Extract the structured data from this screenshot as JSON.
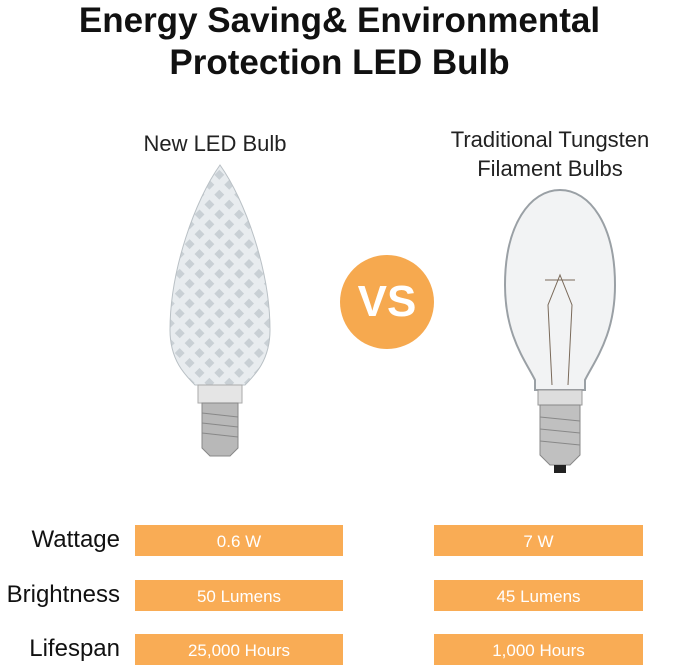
{
  "title": {
    "line1": "Energy Saving& Environmental",
    "line2": "Protection LED Bulb"
  },
  "left_product": {
    "label": "New LED Bulb"
  },
  "right_product": {
    "label_line1": "Traditional Tungsten",
    "label_line2": "Filament Bulbs"
  },
  "vs_badge": "VS",
  "colors": {
    "accent": "#f9ac55",
    "badge": "#f6a94f"
  },
  "comparison": [
    {
      "label": "Wattage",
      "led": "0.6 W",
      "tungsten": "7 W"
    },
    {
      "label": "Brightness",
      "led": "50 Lumens",
      "tungsten": "45 Lumens"
    },
    {
      "label": "Lifespan",
      "led": "25,000 Hours",
      "tungsten": "1,000 Hours"
    }
  ]
}
